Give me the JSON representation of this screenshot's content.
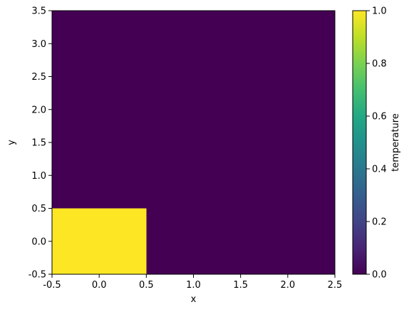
{
  "chart_data": {
    "type": "heatmap",
    "xlabel": "x",
    "ylabel": "y",
    "colorbar_label": "temperature",
    "xlim": [
      -0.5,
      2.5
    ],
    "ylim": [
      -0.5,
      3.5
    ],
    "x_ticks": [
      "-0.5",
      "0.0",
      "0.5",
      "1.0",
      "1.5",
      "2.0",
      "2.5"
    ],
    "y_ticks": [
      "-0.5",
      "0.0",
      "0.5",
      "1.0",
      "1.5",
      "2.0",
      "2.5",
      "3.0",
      "3.5"
    ],
    "colorbar_ticks": [
      "0.0",
      "0.2",
      "0.4",
      "0.6",
      "0.8",
      "1.0"
    ],
    "colorbar_range": [
      0,
      1
    ],
    "colormap": "viridis",
    "colors": {
      "low": "#440154",
      "high": "#fde725"
    },
    "x_centers": [
      0,
      1,
      2
    ],
    "y_centers": [
      0,
      1,
      2,
      3
    ],
    "values": [
      [
        1,
        0,
        0
      ],
      [
        0,
        0,
        0
      ],
      [
        0,
        0,
        0
      ],
      [
        0,
        0,
        0
      ]
    ]
  }
}
